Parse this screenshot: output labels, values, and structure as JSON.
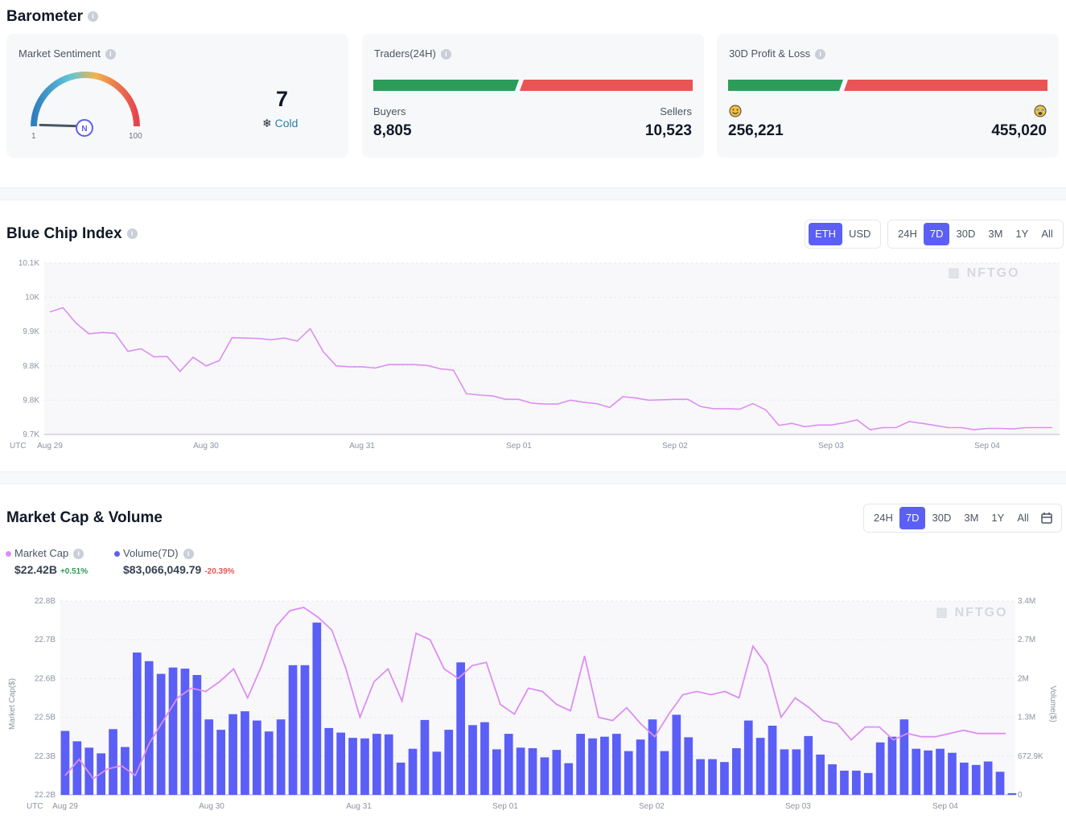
{
  "barometer": {
    "title": "Barometer",
    "sentiment": {
      "title": "Market Sentiment",
      "value": "7",
      "status": "Cold",
      "min_label": "1",
      "max_label": "100",
      "level": 7
    },
    "traders": {
      "title": "Traders(24H)",
      "buyers_label": "Buyers",
      "sellers_label": "Sellers",
      "buyers": "8,805",
      "sellers": "10,523",
      "buyer_share": 0.4555
    },
    "pnl": {
      "title": "30D Profit & Loss",
      "profit": "256,221",
      "loss": "455,020",
      "profit_share": 0.3603
    }
  },
  "colors": {
    "accent": "#5b5ff6",
    "green": "#2d9c5a",
    "red": "#ea5455",
    "line": "#dd8ef0",
    "bar": "#5b5ff6",
    "cold": "#2a7ea8"
  },
  "blue_chip": {
    "title": "Blue Chip Index",
    "currency_tabs": [
      {
        "label": "ETH",
        "active": true
      },
      {
        "label": "USD",
        "active": false
      }
    ],
    "range_tabs": [
      {
        "label": "24H",
        "active": false
      },
      {
        "label": "7D",
        "active": true
      },
      {
        "label": "30D",
        "active": false
      },
      {
        "label": "3M",
        "active": false
      },
      {
        "label": "1Y",
        "active": false
      },
      {
        "label": "All",
        "active": false
      }
    ],
    "watermark": "NFTGO"
  },
  "market_cap": {
    "title": "Market Cap & Volume",
    "range_tabs": [
      {
        "label": "24H",
        "active": false
      },
      {
        "label": "7D",
        "active": true
      },
      {
        "label": "30D",
        "active": false
      },
      {
        "label": "3M",
        "active": false
      },
      {
        "label": "1Y",
        "active": false
      },
      {
        "label": "All",
        "active": false
      }
    ],
    "legend": {
      "cap_label": "Market Cap",
      "cap_value": "$22.42B",
      "cap_change": "+0.51%",
      "vol_label": "Volume(7D)",
      "vol_value": "$83,066,049.79",
      "vol_change": "-20.39%"
    },
    "watermark": "NFTGO"
  },
  "chart_data": [
    {
      "type": "line",
      "title": "Blue Chip Index",
      "x_timezone_label": "UTC",
      "x_ticks": [
        "Aug 29",
        "Aug 30",
        "Aug 31",
        "Sep 01",
        "Sep 02",
        "Sep 03",
        "Sep 04"
      ],
      "y_ticks": [
        "10.1K",
        "10K",
        "9.9K",
        "9.8K",
        "9.8K",
        "9.7K"
      ],
      "ylim": [
        9700,
        10100
      ],
      "series": [
        {
          "values": [
            9986,
            9996,
            9960,
            9935,
            9938,
            9936,
            9894,
            9900,
            9881,
            9882,
            9847,
            9880,
            9860,
            9872,
            9926,
            9925,
            9924,
            9921,
            9925,
            9918,
            9947,
            9893,
            9860,
            9858,
            9858,
            9855,
            9863,
            9863,
            9863,
            9861,
            9853,
            9850,
            9795,
            9792,
            9790,
            9782,
            9782,
            9773,
            9771,
            9771,
            9780,
            9775,
            9772,
            9763,
            9788,
            9785,
            9780,
            9781,
            9782,
            9782,
            9765,
            9760,
            9760,
            9759,
            9772,
            9757,
            9721,
            9726,
            9718,
            9722,
            9722,
            9727,
            9734,
            9711,
            9716,
            9716,
            9730,
            9726,
            9721,
            9716,
            9716,
            9711,
            9714,
            9714,
            9713,
            9716,
            9716,
            9716
          ]
        }
      ]
    },
    {
      "type": "bar",
      "title": "Market Cap & Volume",
      "x_timezone_label": "UTC",
      "x_ticks": [
        "Aug 29",
        "Aug 30",
        "Aug 31",
        "Sep 01",
        "Sep 02",
        "Sep 03",
        "Sep 04"
      ],
      "y_left_label": "Market Cap($)",
      "y_left_ticks": [
        "22.8B",
        "22.7B",
        "22.6B",
        "22.5B",
        "22.3B",
        "22.2B"
      ],
      "y_right_label": "Volume($)",
      "y_right_ticks": [
        "3.4M",
        "2.7M",
        "2M",
        "1.3M",
        "672.9K",
        "0"
      ],
      "series": [
        {
          "name": "Volume(7D)",
          "axis": "right",
          "unit": "USD",
          "values": [
            1110000,
            930000,
            820000,
            720000,
            1140000,
            830000,
            2470000,
            2320000,
            2100000,
            2210000,
            2190000,
            2080000,
            1310000,
            1130000,
            1400000,
            1450000,
            1290000,
            1100000,
            1310000,
            2250000,
            2250000,
            2990000,
            1160000,
            1080000,
            990000,
            980000,
            1060000,
            1050000,
            560000,
            800000,
            1300000,
            750000,
            1130000,
            2300000,
            1210000,
            1260000,
            790000,
            1060000,
            820000,
            810000,
            650000,
            780000,
            550000,
            1060000,
            980000,
            1010000,
            1060000,
            760000,
            960000,
            1310000,
            760000,
            1390000,
            1000000,
            620000,
            620000,
            570000,
            810000,
            1290000,
            990000,
            1200000,
            790000,
            790000,
            1020000,
            700000,
            530000,
            420000,
            420000,
            380000,
            910000,
            1010000,
            1310000,
            800000,
            770000,
            800000,
            730000,
            560000,
            520000,
            580000,
            400000,
            30000
          ]
        },
        {
          "name": "Market Cap",
          "axis": "left",
          "unit": "B USD",
          "values": [
            22.26,
            22.31,
            22.25,
            22.28,
            22.29,
            22.26,
            22.36,
            22.43,
            22.5,
            22.53,
            22.52,
            22.55,
            22.59,
            22.5,
            22.6,
            22.72,
            22.77,
            22.78,
            22.75,
            22.71,
            22.59,
            22.44,
            22.55,
            22.59,
            22.49,
            22.7,
            22.68,
            22.59,
            22.56,
            22.6,
            22.61,
            22.48,
            22.45,
            22.53,
            22.52,
            22.48,
            22.46,
            22.63,
            22.44,
            22.43,
            22.47,
            22.42,
            22.38,
            22.45,
            22.51,
            22.52,
            22.51,
            22.52,
            22.5,
            22.66,
            22.6,
            22.44,
            22.5,
            22.47,
            22.43,
            22.42,
            22.37,
            22.41,
            22.41,
            22.37,
            22.39,
            22.38,
            22.38,
            22.39,
            22.4,
            22.39,
            22.39,
            22.39
          ]
        }
      ]
    }
  ]
}
